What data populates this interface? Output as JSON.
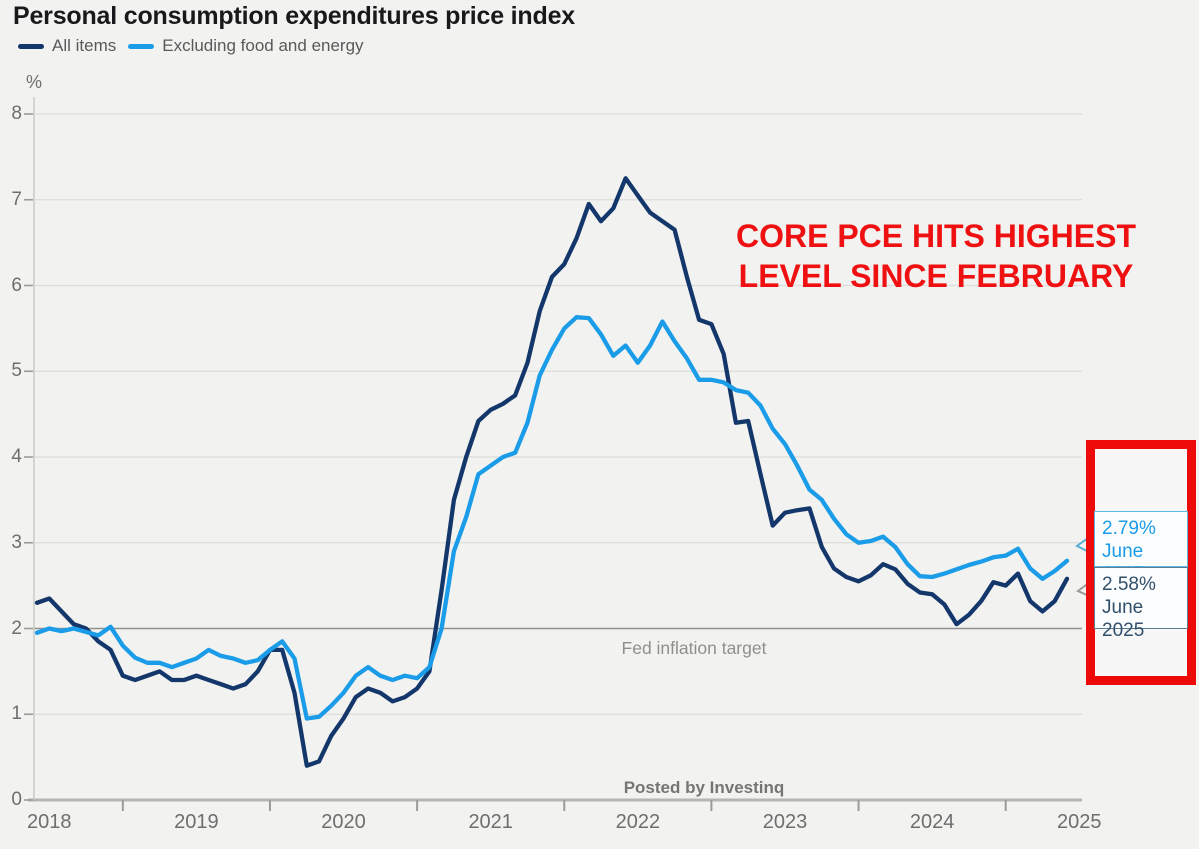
{
  "title": "Personal consumption expenditures price index",
  "legend": {
    "items": [
      {
        "label": "All items",
        "color": "#14376b"
      },
      {
        "label": "Excluding food and energy",
        "color": "#1b9ce8"
      }
    ]
  },
  "annotation": {
    "line1": "CORE PCE HITS HIGHEST",
    "line2": "LEVEL SINCE FEBRUARY",
    "color": "#ef1111"
  },
  "callouts": {
    "box_color": "#ef0a0a",
    "core": {
      "value": "2.79%",
      "date": "June 2025",
      "text_color": "#1b9ce8",
      "border_color": "#5cb6de"
    },
    "all": {
      "value": "2.58%",
      "date": "June 2025",
      "text_color": "#32506b",
      "border_color": "#5b7e97"
    }
  },
  "fed_target_label": "Fed inflation target",
  "watermark": "Posted by Investinq",
  "y_unit": "%",
  "chart_data": {
    "type": "line",
    "title": "Personal consumption expenditures price index",
    "x_start": "2018-06",
    "x_end": "2025-06",
    "frequency": "monthly",
    "ylim": [
      0,
      8
    ],
    "yticks": [
      0,
      1,
      2,
      3,
      4,
      5,
      6,
      7,
      8
    ],
    "ylabel": "%",
    "grid": true,
    "legend_position": "top-left",
    "x_year_labels": [
      "2018",
      "2019",
      "2020",
      "2021",
      "2022",
      "2023",
      "2024",
      "2025"
    ],
    "reference_line": {
      "label": "Fed inflation target",
      "y": 2
    },
    "series": [
      {
        "name": "All items",
        "color": "#14376b",
        "end_label": "2.58% June 2025",
        "values": [
          2.3,
          2.35,
          2.2,
          2.05,
          2.0,
          1.85,
          1.75,
          1.45,
          1.4,
          1.45,
          1.5,
          1.4,
          1.4,
          1.45,
          1.4,
          1.35,
          1.3,
          1.35,
          1.5,
          1.75,
          1.75,
          1.25,
          0.4,
          0.45,
          0.75,
          0.95,
          1.2,
          1.3,
          1.25,
          1.15,
          1.2,
          1.3,
          1.5,
          2.45,
          3.5,
          4.0,
          4.42,
          4.55,
          4.62,
          4.72,
          5.1,
          5.7,
          6.1,
          6.25,
          6.55,
          6.95,
          6.75,
          6.9,
          7.25,
          7.05,
          6.85,
          6.75,
          6.65,
          6.1,
          5.6,
          5.55,
          5.2,
          4.4,
          4.42,
          3.8,
          3.2,
          3.35,
          3.38,
          3.4,
          2.95,
          2.7,
          2.6,
          2.55,
          2.62,
          2.75,
          2.69,
          2.52,
          2.42,
          2.4,
          2.28,
          2.05,
          2.16,
          2.32,
          2.54,
          2.5,
          2.64,
          2.32,
          2.2,
          2.32,
          2.58
        ]
      },
      {
        "name": "Excluding food and energy",
        "color": "#1b9ce8",
        "end_label": "2.79% June 2025",
        "values": [
          1.95,
          2.0,
          1.97,
          2.0,
          1.96,
          1.92,
          2.02,
          1.8,
          1.66,
          1.6,
          1.6,
          1.55,
          1.6,
          1.65,
          1.75,
          1.68,
          1.65,
          1.6,
          1.63,
          1.75,
          1.85,
          1.65,
          0.95,
          0.97,
          1.1,
          1.25,
          1.45,
          1.55,
          1.45,
          1.4,
          1.45,
          1.42,
          1.55,
          2.0,
          2.9,
          3.3,
          3.8,
          3.9,
          4.0,
          4.05,
          4.4,
          4.95,
          5.25,
          5.5,
          5.63,
          5.62,
          5.43,
          5.18,
          5.3,
          5.1,
          5.3,
          5.58,
          5.35,
          5.15,
          4.9,
          4.9,
          4.87,
          4.78,
          4.75,
          4.6,
          4.33,
          4.15,
          3.9,
          3.62,
          3.5,
          3.28,
          3.1,
          3.0,
          3.02,
          3.07,
          2.95,
          2.75,
          2.61,
          2.6,
          2.64,
          2.69,
          2.74,
          2.78,
          2.83,
          2.85,
          2.93,
          2.7,
          2.58,
          2.67,
          2.79
        ]
      }
    ]
  }
}
